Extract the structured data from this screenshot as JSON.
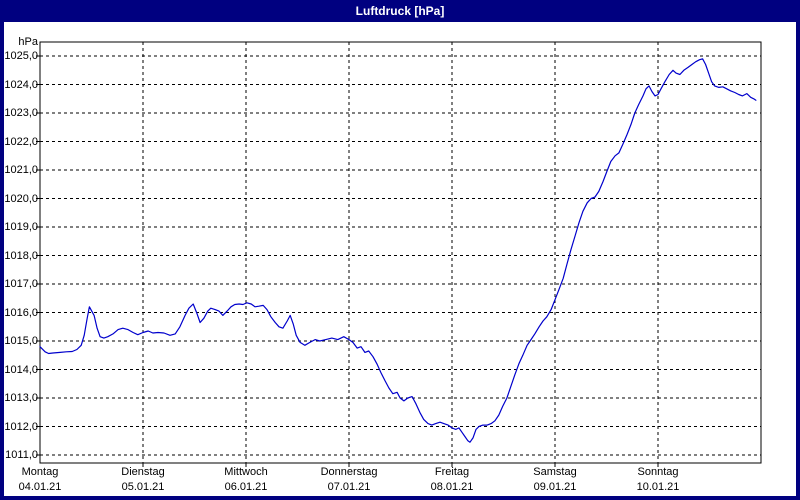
{
  "window": {
    "title": "Luftdruck [hPa]"
  },
  "colors": {
    "frame": "#000080",
    "title_text": "#ffffff",
    "background": "#ffffff",
    "grid": "#000000",
    "axis": "#000000",
    "text": "#000000",
    "line": "#0000cc"
  },
  "y_axis": {
    "unit": "hPa",
    "min": 1011,
    "max": 1025,
    "step": 1,
    "labels": [
      {
        "value": 1025,
        "label": "1025,0"
      },
      {
        "value": 1024,
        "label": "1024,0"
      },
      {
        "value": 1023,
        "label": "1023,0"
      },
      {
        "value": 1022,
        "label": "1022,0"
      },
      {
        "value": 1021,
        "label": "1021,0"
      },
      {
        "value": 1020,
        "label": "1020,0"
      },
      {
        "value": 1019,
        "label": "1019,0"
      },
      {
        "value": 1018,
        "label": "1018,0"
      },
      {
        "value": 1017,
        "label": "1017,0"
      },
      {
        "value": 1016,
        "label": "1016,0"
      },
      {
        "value": 1015,
        "label": "1015,0"
      },
      {
        "value": 1014,
        "label": "1014,0"
      },
      {
        "value": 1013,
        "label": "1013,0"
      },
      {
        "value": 1012,
        "label": "1012,0"
      },
      {
        "value": 1011,
        "label": "1011,0"
      }
    ]
  },
  "x_axis": {
    "days": [
      {
        "weekday": "Montag",
        "date": "04.01.21",
        "hour": 0
      },
      {
        "weekday": "Dienstag",
        "date": "05.01.21",
        "hour": 24
      },
      {
        "weekday": "Mittwoch",
        "date": "06.01.21",
        "hour": 48
      },
      {
        "weekday": "Donnerstag",
        "date": "07.01.21",
        "hour": 72
      },
      {
        "weekday": "Freitag",
        "date": "08.01.21",
        "hour": 96
      },
      {
        "weekday": "Samstag",
        "date": "09.01.21",
        "hour": 120
      },
      {
        "weekday": "Sonntag",
        "date": "10.01.21",
        "hour": 144
      }
    ],
    "range_hours": [
      0,
      168
    ]
  },
  "chart_data": {
    "type": "line",
    "title": "Luftdruck [hPa]",
    "ylabel": "hPa",
    "ylim": [
      1011,
      1025
    ],
    "x_unit": "hours since Montag 04.01.21 00:00",
    "grid": "dashed",
    "legend": "none",
    "series": [
      {
        "name": "Luftdruck",
        "points": [
          [
            0,
            1014.8
          ],
          [
            1.2,
            1014.62
          ],
          [
            2,
            1014.56
          ],
          [
            3,
            1014.58
          ],
          [
            4.7,
            1014.6
          ],
          [
            6.1,
            1014.62
          ],
          [
            7.5,
            1014.63
          ],
          [
            8.6,
            1014.7
          ],
          [
            9.6,
            1014.85
          ],
          [
            10.3,
            1015.2
          ],
          [
            11,
            1015.8
          ],
          [
            11.5,
            1016.2
          ],
          [
            12.6,
            1015.9
          ],
          [
            13.3,
            1015.45
          ],
          [
            14,
            1015.15
          ],
          [
            14.9,
            1015.1
          ],
          [
            15.8,
            1015.15
          ],
          [
            17,
            1015.25
          ],
          [
            18.2,
            1015.4
          ],
          [
            19.3,
            1015.45
          ],
          [
            20.5,
            1015.4
          ],
          [
            21.7,
            1015.3
          ],
          [
            22.8,
            1015.22
          ],
          [
            24,
            1015.3
          ],
          [
            25.2,
            1015.35
          ],
          [
            26.3,
            1015.28
          ],
          [
            27.5,
            1015.3
          ],
          [
            28.9,
            1015.28
          ],
          [
            30.3,
            1015.2
          ],
          [
            31.5,
            1015.25
          ],
          [
            32.6,
            1015.5
          ],
          [
            33.8,
            1015.9
          ],
          [
            34.7,
            1016.15
          ],
          [
            35.7,
            1016.3
          ],
          [
            36.6,
            1015.95
          ],
          [
            37.3,
            1015.65
          ],
          [
            38.2,
            1015.8
          ],
          [
            39.1,
            1016.05
          ],
          [
            39.8,
            1016.15
          ],
          [
            40.8,
            1016.1
          ],
          [
            41.7,
            1016.05
          ],
          [
            42.6,
            1015.9
          ],
          [
            43.6,
            1016.05
          ],
          [
            44.5,
            1016.2
          ],
          [
            45.4,
            1016.28
          ],
          [
            46.4,
            1016.3
          ],
          [
            47.3,
            1016.28
          ],
          [
            48.2,
            1016.34
          ],
          [
            49.2,
            1016.3
          ],
          [
            50.1,
            1016.2
          ],
          [
            51,
            1016.22
          ],
          [
            52,
            1016.25
          ],
          [
            52.9,
            1016.1
          ],
          [
            53.8,
            1015.85
          ],
          [
            54.8,
            1015.65
          ],
          [
            55.7,
            1015.5
          ],
          [
            56.6,
            1015.45
          ],
          [
            57.6,
            1015.7
          ],
          [
            58.3,
            1015.9
          ],
          [
            59,
            1015.6
          ],
          [
            59.7,
            1015.2
          ],
          [
            60.6,
            1014.95
          ],
          [
            61.7,
            1014.85
          ],
          [
            62.9,
            1014.95
          ],
          [
            64.1,
            1015.05
          ],
          [
            65.2,
            1015
          ],
          [
            66.6,
            1015.05
          ],
          [
            68,
            1015.1
          ],
          [
            69.4,
            1015.05
          ],
          [
            70.8,
            1015.15
          ],
          [
            72,
            1015.05
          ],
          [
            72.9,
            1014.95
          ],
          [
            73.9,
            1014.75
          ],
          [
            74.8,
            1014.8
          ],
          [
            75.7,
            1014.6
          ],
          [
            76.6,
            1014.65
          ],
          [
            77.6,
            1014.45
          ],
          [
            78.5,
            1014.2
          ],
          [
            79.4,
            1013.9
          ],
          [
            80.4,
            1013.6
          ],
          [
            81.3,
            1013.35
          ],
          [
            82.2,
            1013.15
          ],
          [
            83.2,
            1013.2
          ],
          [
            83.9,
            1013
          ],
          [
            84.8,
            1012.9
          ],
          [
            85.7,
            1013
          ],
          [
            86.7,
            1013.05
          ],
          [
            87.6,
            1012.8
          ],
          [
            88.5,
            1012.5
          ],
          [
            89.4,
            1012.25
          ],
          [
            90.4,
            1012.1
          ],
          [
            91.3,
            1012.05
          ],
          [
            92.2,
            1012.1
          ],
          [
            93.2,
            1012.15
          ],
          [
            94.1,
            1012.1
          ],
          [
            95.1,
            1012.05
          ],
          [
            96,
            1011.95
          ],
          [
            96.9,
            1011.9
          ],
          [
            97.6,
            1011.95
          ],
          [
            98.3,
            1011.8
          ],
          [
            99,
            1011.65
          ],
          [
            99.7,
            1011.5
          ],
          [
            100.2,
            1011.45
          ],
          [
            100.9,
            1011.6
          ],
          [
            101.6,
            1011.9
          ],
          [
            102.3,
            1012
          ],
          [
            103.2,
            1012.05
          ],
          [
            104.2,
            1012.05
          ],
          [
            105.1,
            1012.1
          ],
          [
            106,
            1012.2
          ],
          [
            106.9,
            1012.4
          ],
          [
            107.8,
            1012.7
          ],
          [
            108.8,
            1013
          ],
          [
            109.7,
            1013.4
          ],
          [
            110.6,
            1013.8
          ],
          [
            111.6,
            1014.2
          ],
          [
            112.5,
            1014.5
          ],
          [
            113.5,
            1014.85
          ],
          [
            114.4,
            1015.05
          ],
          [
            115.3,
            1015.25
          ],
          [
            116.3,
            1015.5
          ],
          [
            117.2,
            1015.7
          ],
          [
            118.1,
            1015.85
          ],
          [
            119.1,
            1016.1
          ],
          [
            120,
            1016.45
          ],
          [
            120.9,
            1016.8
          ],
          [
            121.9,
            1017.2
          ],
          [
            122.8,
            1017.7
          ],
          [
            123.7,
            1018.2
          ],
          [
            124.7,
            1018.7
          ],
          [
            125.6,
            1019.15
          ],
          [
            126.5,
            1019.55
          ],
          [
            127.5,
            1019.85
          ],
          [
            128.4,
            1020
          ],
          [
            129.3,
            1020.05
          ],
          [
            130.2,
            1020.25
          ],
          [
            131.2,
            1020.6
          ],
          [
            132.1,
            1020.95
          ],
          [
            133,
            1021.3
          ],
          [
            134,
            1021.5
          ],
          [
            134.9,
            1021.6
          ],
          [
            135.8,
            1021.9
          ],
          [
            136.8,
            1022.25
          ],
          [
            137.7,
            1022.6
          ],
          [
            138.6,
            1023
          ],
          [
            139.5,
            1023.3
          ],
          [
            140.5,
            1023.6
          ],
          [
            141.2,
            1023.85
          ],
          [
            141.9,
            1023.95
          ],
          [
            142.6,
            1023.75
          ],
          [
            143.3,
            1023.6
          ],
          [
            144,
            1023.65
          ],
          [
            144.7,
            1023.85
          ],
          [
            145.6,
            1024.1
          ],
          [
            146.6,
            1024.35
          ],
          [
            147.5,
            1024.5
          ],
          [
            148.2,
            1024.4
          ],
          [
            149.1,
            1024.35
          ],
          [
            150,
            1024.5
          ],
          [
            151,
            1024.6
          ],
          [
            151.9,
            1024.7
          ],
          [
            152.8,
            1024.8
          ],
          [
            153.7,
            1024.87
          ],
          [
            154.4,
            1024.9
          ],
          [
            155.1,
            1024.7
          ],
          [
            155.8,
            1024.4
          ],
          [
            156.5,
            1024.1
          ],
          [
            157.2,
            1023.95
          ],
          [
            158.2,
            1023.9
          ],
          [
            159.1,
            1023.92
          ],
          [
            160,
            1023.85
          ],
          [
            160.9,
            1023.78
          ],
          [
            161.9,
            1023.72
          ],
          [
            162.8,
            1023.65
          ],
          [
            163.7,
            1023.6
          ],
          [
            164.7,
            1023.68
          ],
          [
            165.6,
            1023.55
          ],
          [
            166.3,
            1023.5
          ],
          [
            166.8,
            1023.45
          ]
        ]
      }
    ]
  }
}
